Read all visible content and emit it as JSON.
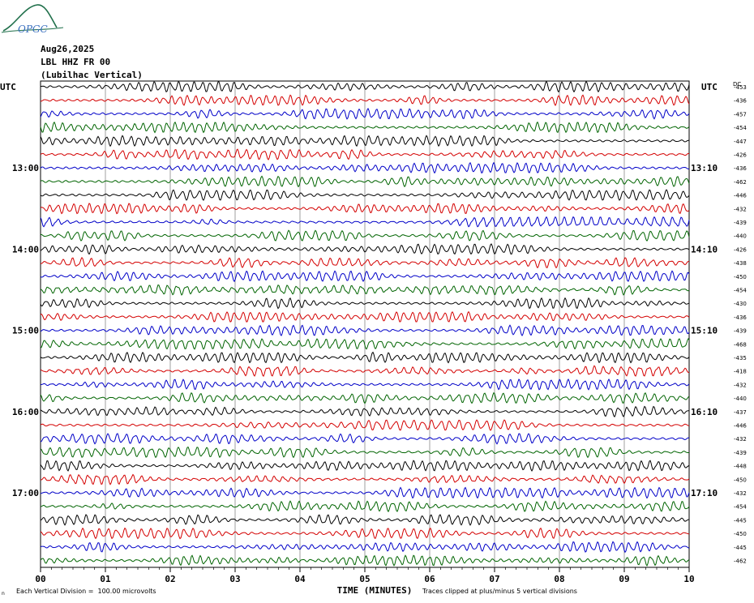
{
  "header": {
    "logo_text": "OPGC",
    "date": "Aug26,2025",
    "station": "LBL HHZ FR 00",
    "location": "(Lubilhac Vertical)"
  },
  "colors": {
    "trace_cycle": [
      "#000000",
      "#d40000",
      "#0000c8",
      "#006400"
    ],
    "grid": "#888888",
    "logo": "#1f6f4a"
  },
  "footer": {
    "scale_note": "Each Vertical Division =  100.00 microvolts",
    "clip_note": "Traces clipped at plus/minus 5 vertical divisions",
    "corner_mark": "n"
  },
  "chart_data": {
    "type": "line",
    "title": "",
    "xlabel": "TIME (MINUTES)",
    "x_ticks": [
      "00",
      "01",
      "02",
      "03",
      "04",
      "05",
      "06",
      "07",
      "08",
      "09",
      "10"
    ],
    "xlim": [
      0,
      10
    ],
    "left_axis_title": "UTC",
    "right_axis_title": "UTC",
    "dc_label": "DC",
    "left_time_labels": [
      "13:00",
      "14:00",
      "15:00",
      "16:00",
      "17:00"
    ],
    "right_time_labels": [
      "13:10",
      "14:10",
      "15:10",
      "16:10",
      "17:10"
    ],
    "time_label_rows": [
      6,
      12,
      18,
      24,
      30
    ],
    "dc_offsets": [
      -453,
      -436,
      -457,
      -454,
      -447,
      -426,
      -436,
      -462,
      -446,
      -432,
      -439,
      -440,
      -426,
      -438,
      -450,
      -454,
      -430,
      -436,
      -439,
      -468,
      -435,
      -418,
      -432,
      -440,
      -437,
      -446,
      -432,
      -439,
      -448,
      -450,
      -432,
      -454,
      -445,
      -450,
      -445,
      -462
    ],
    "trace_count": 36,
    "grid": true
  }
}
